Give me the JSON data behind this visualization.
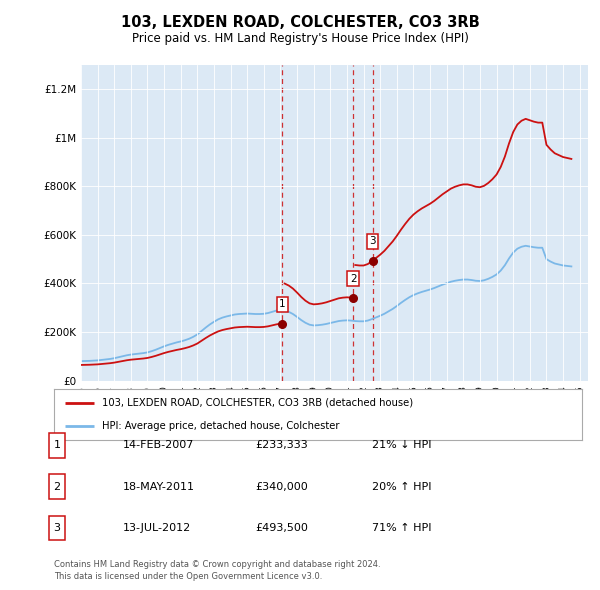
{
  "title": "103, LEXDEN ROAD, COLCHESTER, CO3 3RB",
  "subtitle": "Price paid vs. HM Land Registry's House Price Index (HPI)",
  "background_color": "#dce9f5",
  "ylim": [
    0,
    1300000
  ],
  "yticks": [
    0,
    200000,
    400000,
    600000,
    800000,
    1000000,
    1200000
  ],
  "ytick_labels": [
    "£0",
    "£200K",
    "£400K",
    "£600K",
    "£800K",
    "£1M",
    "£1.2M"
  ],
  "hpi_years": [
    1995.0,
    1995.25,
    1995.5,
    1995.75,
    1996.0,
    1996.25,
    1996.5,
    1996.75,
    1997.0,
    1997.25,
    1997.5,
    1997.75,
    1998.0,
    1998.25,
    1998.5,
    1998.75,
    1999.0,
    1999.25,
    1999.5,
    1999.75,
    2000.0,
    2000.25,
    2000.5,
    2000.75,
    2001.0,
    2001.25,
    2001.5,
    2001.75,
    2002.0,
    2002.25,
    2002.5,
    2002.75,
    2003.0,
    2003.25,
    2003.5,
    2003.75,
    2004.0,
    2004.25,
    2004.5,
    2004.75,
    2005.0,
    2005.25,
    2005.5,
    2005.75,
    2006.0,
    2006.25,
    2006.5,
    2006.75,
    2007.0,
    2007.25,
    2007.5,
    2007.75,
    2008.0,
    2008.25,
    2008.5,
    2008.75,
    2009.0,
    2009.25,
    2009.5,
    2009.75,
    2010.0,
    2010.25,
    2010.5,
    2010.75,
    2011.0,
    2011.25,
    2011.5,
    2011.75,
    2012.0,
    2012.25,
    2012.5,
    2012.75,
    2013.0,
    2013.25,
    2013.5,
    2013.75,
    2014.0,
    2014.25,
    2014.5,
    2014.75,
    2015.0,
    2015.25,
    2015.5,
    2015.75,
    2016.0,
    2016.25,
    2016.5,
    2016.75,
    2017.0,
    2017.25,
    2017.5,
    2017.75,
    2018.0,
    2018.25,
    2018.5,
    2018.75,
    2019.0,
    2019.25,
    2019.5,
    2019.75,
    2020.0,
    2020.25,
    2020.5,
    2020.75,
    2021.0,
    2021.25,
    2021.5,
    2021.75,
    2022.0,
    2022.25,
    2022.5,
    2022.75,
    2023.0,
    2023.25,
    2023.5,
    2023.75,
    2024.0,
    2024.25,
    2024.5
  ],
  "hpi_values": [
    80000,
    80500,
    81000,
    82000,
    83000,
    85000,
    87000,
    89000,
    92000,
    96000,
    100000,
    104000,
    107000,
    109000,
    111000,
    113000,
    116000,
    121000,
    127000,
    134000,
    141000,
    147000,
    152000,
    157000,
    161000,
    166000,
    172000,
    180000,
    190000,
    204000,
    218000,
    231000,
    242000,
    252000,
    259000,
    264000,
    268000,
    272000,
    274000,
    275000,
    276000,
    275000,
    274000,
    274000,
    275000,
    278000,
    283000,
    288000,
    292000,
    289000,
    283000,
    274000,
    262000,
    249000,
    238000,
    230000,
    227000,
    228000,
    230000,
    233000,
    237000,
    241000,
    245000,
    247000,
    248000,
    247000,
    245000,
    244000,
    244000,
    247000,
    253000,
    260000,
    267000,
    275000,
    285000,
    295000,
    307000,
    320000,
    332000,
    343000,
    352000,
    359000,
    365000,
    370000,
    375000,
    381000,
    388000,
    395000,
    401000,
    407000,
    411000,
    414000,
    416000,
    416000,
    414000,
    411000,
    410000,
    413000,
    419000,
    427000,
    437000,
    453000,
    475000,
    503000,
    527000,
    543000,
    551000,
    555000,
    552000,
    549000,
    547000,
    547000,
    500000,
    490000,
    482000,
    478000,
    474000,
    472000,
    470000
  ],
  "sale_years": [
    2007.12,
    2011.38,
    2012.54
  ],
  "sale_prices": [
    233333,
    340000,
    493500
  ],
  "sale_labels": [
    "1",
    "2",
    "3"
  ],
  "sale_color": "#8b0000",
  "hpi_line_color": "#7bb8e8",
  "price_line_color": "#cc1111",
  "vline_color": "#cc1111",
  "legend_entries": [
    "103, LEXDEN ROAD, COLCHESTER, CO3 3RB (detached house)",
    "HPI: Average price, detached house, Colchester"
  ],
  "table_data": [
    [
      "1",
      "14-FEB-2007",
      "£233,333",
      "21% ↓ HPI"
    ],
    [
      "2",
      "18-MAY-2011",
      "£340,000",
      "20% ↑ HPI"
    ],
    [
      "3",
      "13-JUL-2012",
      "£493,500",
      "71% ↑ HPI"
    ]
  ],
  "footnote": "Contains HM Land Registry data © Crown copyright and database right 2024.\nThis data is licensed under the Open Government Licence v3.0."
}
